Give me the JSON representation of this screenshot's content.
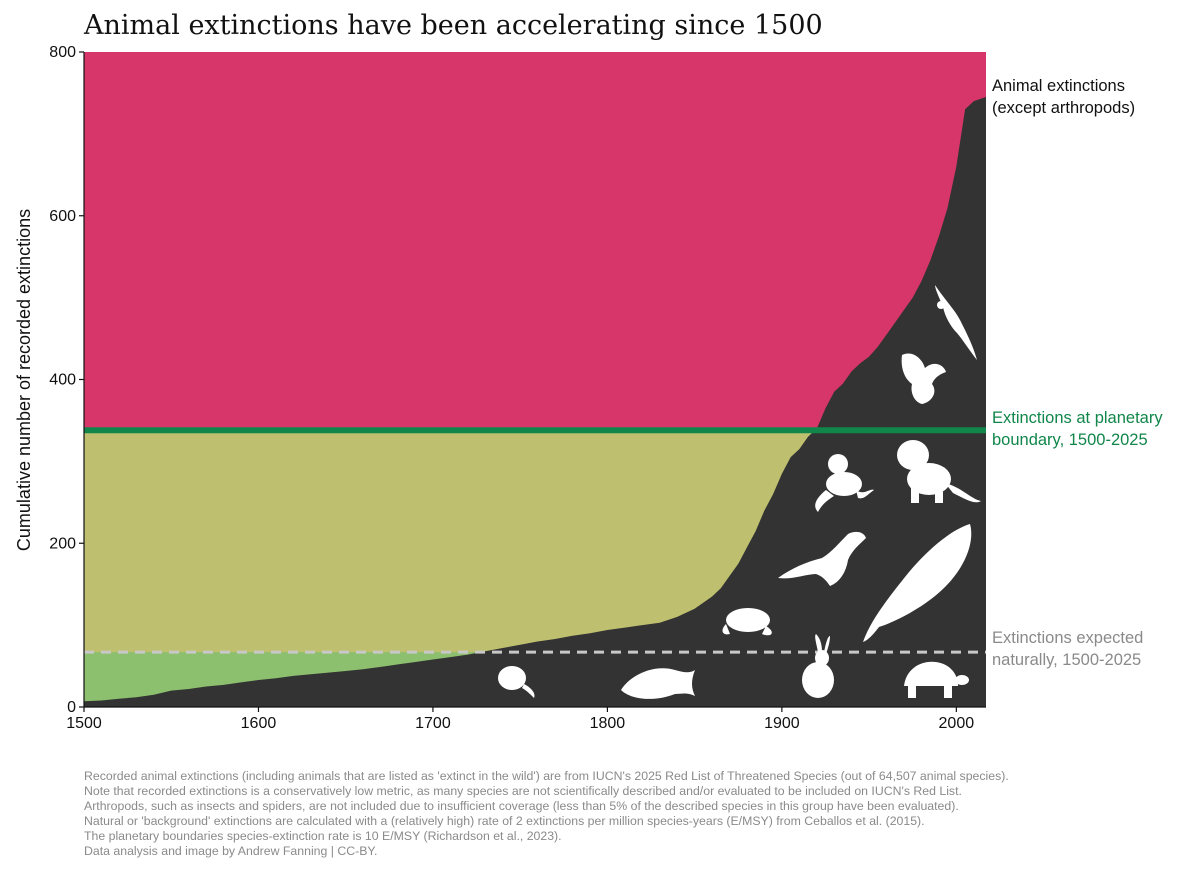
{
  "chart_data": {
    "type": "area",
    "title": "Animal extinctions have been accelerating since 1500",
    "ylabel": "Cumulative number of recorded extinctions",
    "xlabel": "",
    "xlim": [
      1500,
      2017
    ],
    "ylim": [
      0,
      800
    ],
    "x_ticks": [
      "1500",
      "1600",
      "1700",
      "1800",
      "1900",
      "2000"
    ],
    "y_ticks": [
      "0",
      "200",
      "400",
      "600",
      "800"
    ],
    "grid": false,
    "series": [
      {
        "name": "Animal extinctions (except arthropods)",
        "color": "#333333",
        "x": [
          1500,
          1510,
          1520,
          1530,
          1540,
          1550,
          1560,
          1570,
          1580,
          1590,
          1600,
          1610,
          1620,
          1630,
          1640,
          1650,
          1660,
          1670,
          1680,
          1690,
          1700,
          1710,
          1720,
          1730,
          1740,
          1750,
          1760,
          1770,
          1780,
          1790,
          1800,
          1810,
          1820,
          1830,
          1840,
          1850,
          1860,
          1865,
          1870,
          1875,
          1880,
          1885,
          1890,
          1895,
          1900,
          1905,
          1910,
          1915,
          1920,
          1925,
          1930,
          1935,
          1940,
          1945,
          1950,
          1955,
          1960,
          1965,
          1970,
          1975,
          1980,
          1985,
          1990,
          1995,
          2000,
          2005,
          2010,
          2017
        ],
        "y": [
          7,
          8,
          10,
          12,
          15,
          20,
          22,
          25,
          27,
          30,
          33,
          35,
          38,
          40,
          42,
          44,
          46,
          49,
          52,
          55,
          58,
          61,
          64,
          68,
          72,
          76,
          80,
          83,
          87,
          90,
          94,
          97,
          100,
          103,
          110,
          120,
          135,
          145,
          160,
          175,
          195,
          215,
          240,
          260,
          285,
          305,
          315,
          330,
          340,
          365,
          385,
          395,
          410,
          420,
          428,
          440,
          455,
          470,
          485,
          500,
          520,
          545,
          575,
          610,
          660,
          730,
          740,
          745
        ]
      }
    ],
    "thresholds": [
      {
        "name": "Extinctions at planetary boundary, 1500-2025",
        "value": 338,
        "color": "#11864a",
        "fill_color": "#bfc06f",
        "style": "solid"
      },
      {
        "name": "Extinctions expected naturally, 1500-2025",
        "value": 67,
        "color": "#c8c8c8",
        "fill_color": "#8cc06e",
        "style": "dashed"
      }
    ],
    "background_color": "#d63669",
    "annotations": {
      "animal_line1": "Animal extinctions",
      "animal_line2": "(except arthropods)",
      "boundary_line1": "Extinctions at planetary",
      "boundary_line2": "boundary, 1500-2025",
      "natural_line1": "Extinctions expected",
      "natural_line2": "naturally, 1500-2025"
    },
    "silhouettes": [
      "vulture-icon",
      "eagle-icon",
      "monkey-icon",
      "lion-icon",
      "wolf-icon",
      "whale-icon",
      "frog-icon",
      "rat-icon",
      "fish-icon",
      "rabbit-icon",
      "tortoise-icon"
    ]
  },
  "footnote": [
    "Recorded animal extinctions (including animals that are listed as 'extinct in the wild') are from IUCN's 2025 Red List of Threatened Species (out of 64,507 animal species).",
    "Note that recorded extinctions is a conservatively low metric, as many species are not scientifically described and/or evaluated to be included on IUCN's Red List.",
    "Arthropods, such as insects and spiders, are not included due to insufficient coverage (less than 5% of the described species in this group have been evaluated).",
    "Natural or 'background' extinctions are calculated with a (relatively high) rate of 2 extinctions per million species-years (E/MSY) from Ceballos et al. (2015).",
    "The planetary boundaries species-extinction rate is 10 E/MSY (Richardson et al., 2023).",
    "Data analysis and image by Andrew Fanning | CC-BY."
  ]
}
